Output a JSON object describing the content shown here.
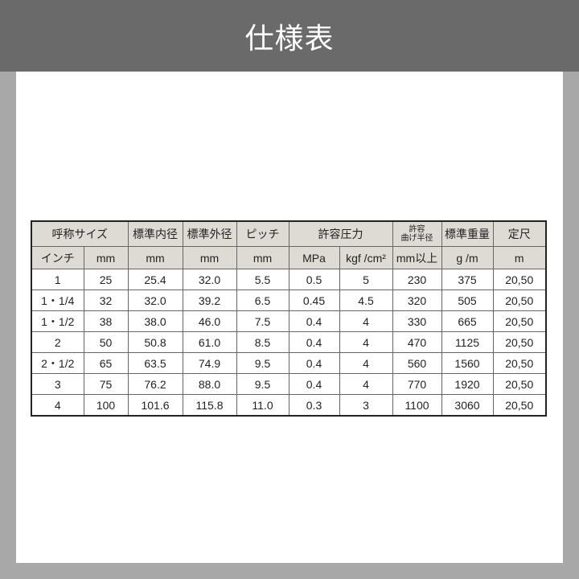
{
  "title": "仕様表",
  "table": {
    "header1": [
      {
        "text": "呼称サイズ",
        "colspan": 2
      },
      {
        "text": "標準内径"
      },
      {
        "text": "標準外径"
      },
      {
        "text": "ピッチ"
      },
      {
        "text": "許容圧力",
        "colspan": 2
      },
      {
        "text": "許容\n曲げ半径",
        "small": true
      },
      {
        "text": "標準重量"
      },
      {
        "text": "定尺"
      }
    ],
    "header2": [
      "インチ",
      "mm",
      "mm",
      "mm",
      "mm",
      "MPa",
      "kgf /cm²",
      "mm以上",
      "g /m",
      "m"
    ],
    "rows": [
      [
        "1",
        "25",
        "25.4",
        "32.0",
        "5.5",
        "0.5",
        "5",
        "230",
        "375",
        "20,50"
      ],
      [
        "1・1/4",
        "32",
        "32.0",
        "39.2",
        "6.5",
        "0.45",
        "4.5",
        "320",
        "505",
        "20,50"
      ],
      [
        "1・1/2",
        "38",
        "38.0",
        "46.0",
        "7.5",
        "0.4",
        "4",
        "330",
        "665",
        "20,50"
      ],
      [
        "2",
        "50",
        "50.8",
        "61.0",
        "8.5",
        "0.4",
        "4",
        "470",
        "1125",
        "20,50"
      ],
      [
        "2・1/2",
        "65",
        "63.5",
        "74.9",
        "9.5",
        "0.4",
        "4",
        "560",
        "1560",
        "20,50"
      ],
      [
        "3",
        "75",
        "76.2",
        "88.0",
        "9.5",
        "0.4",
        "4",
        "770",
        "1920",
        "20,50"
      ],
      [
        "4",
        "100",
        "101.6",
        "115.8",
        "11.0",
        "0.3",
        "3",
        "1100",
        "3060",
        "20,50"
      ]
    ]
  }
}
